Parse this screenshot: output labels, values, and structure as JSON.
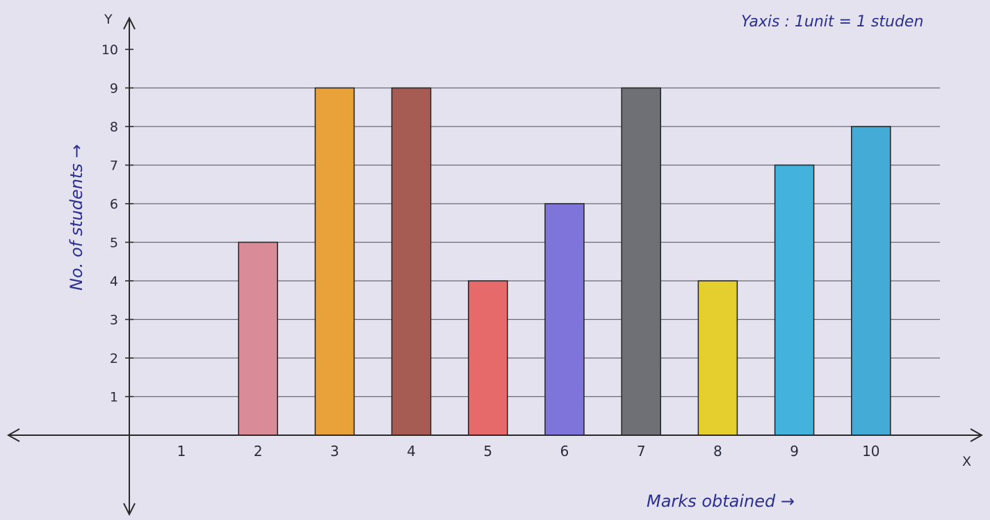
{
  "chart_data": {
    "type": "bar",
    "title": "",
    "scale_note": "Yaxis : 1unit = 1 studen",
    "xlabel": "Marks obtained →",
    "ylabel": "No. of students →",
    "x_axis_letter": "X",
    "y_axis_letter": "Y",
    "categories": [
      "1",
      "2",
      "3",
      "4",
      "5",
      "6",
      "7",
      "8",
      "9",
      "10"
    ],
    "values": [
      0,
      5,
      9,
      9,
      4,
      6,
      9,
      4,
      7,
      8
    ],
    "y_ticks": [
      "1",
      "2",
      "3",
      "4",
      "5",
      "6",
      "7",
      "8",
      "9",
      "10"
    ],
    "ylim": [
      0,
      10
    ],
    "grid": true,
    "colors": [
      "#d98b98",
      "#d98b98",
      "#e9a23a",
      "#a65c52",
      "#e66a6a",
      "#7f74d9",
      "#6f6f76",
      "#e4cf2e",
      "#43b3de",
      "#43abd6"
    ]
  }
}
